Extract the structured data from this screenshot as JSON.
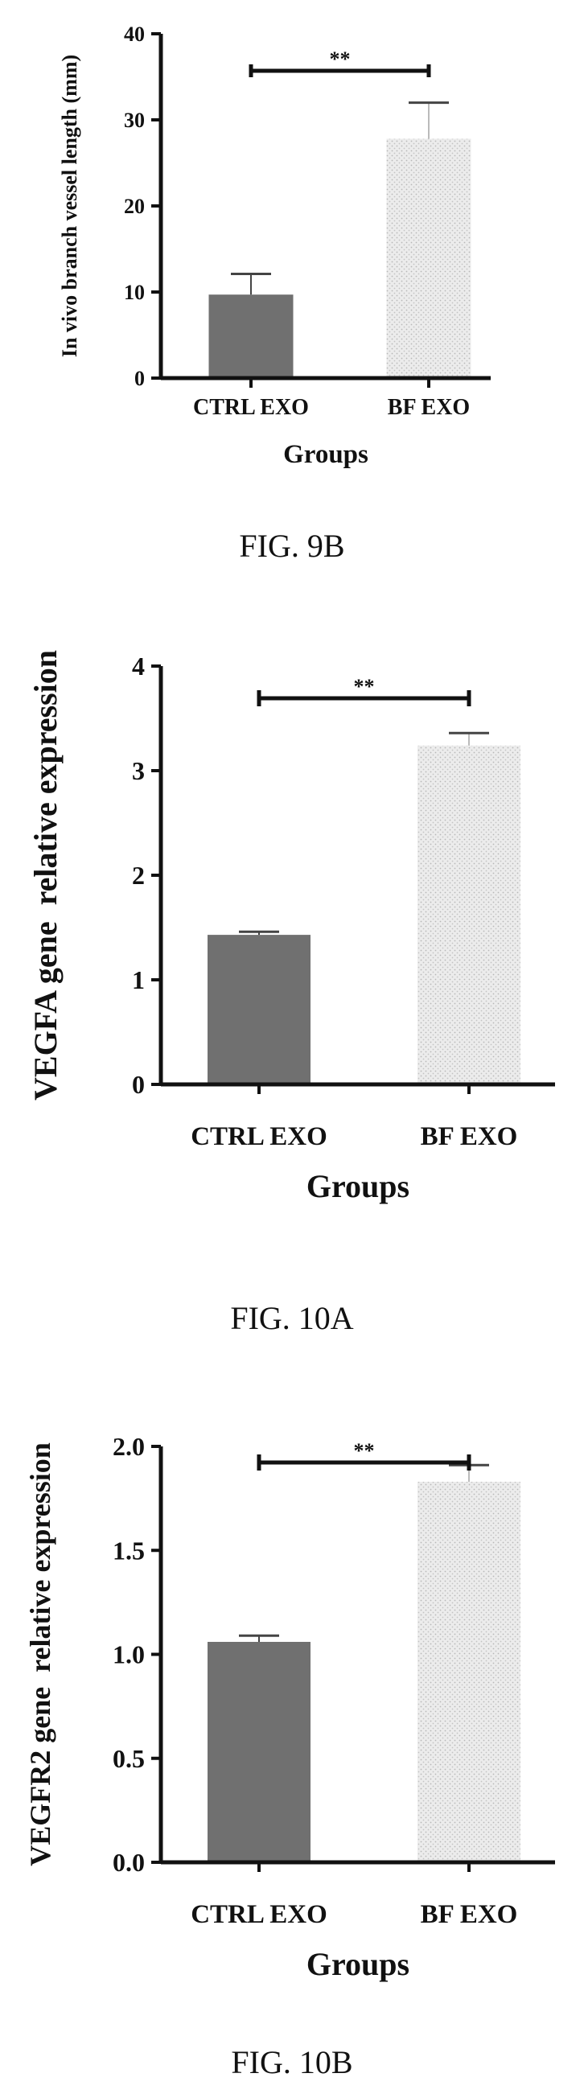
{
  "chart_data": [
    {
      "type": "bar",
      "categories": [
        "CTRL EXO",
        "BF EXO"
      ],
      "values": [
        9.7,
        27.8
      ],
      "errors": [
        2.4,
        4.2
      ],
      "ylabel": "In vivo branch vessel length (mm)",
      "xlabel": "Groups",
      "ylim": [
        0,
        40
      ],
      "yticks": [
        "0",
        "10",
        "20",
        "30",
        "40"
      ],
      "significance": "**",
      "bar_colors": [
        "#707070",
        "#dcdcdc"
      ],
      "caption": "FIG. 9B"
    },
    {
      "type": "bar",
      "categories": [
        "CTRL EXO",
        "BF EXO"
      ],
      "values": [
        1.43,
        3.24
      ],
      "errors": [
        0.03,
        0.12
      ],
      "ylabel": "VEGFA gene  relative expression",
      "xlabel": "Groups",
      "ylim": [
        0,
        4
      ],
      "yticks": [
        "0",
        "1",
        "2",
        "3",
        "4"
      ],
      "significance": "**",
      "bar_colors": [
        "#707070",
        "#dcdcdc"
      ],
      "caption": "FIG. 10A"
    },
    {
      "type": "bar",
      "categories": [
        "CTRL EXO",
        "BF EXO"
      ],
      "values": [
        1.06,
        1.83
      ],
      "errors": [
        0.03,
        0.08
      ],
      "ylabel": "VEGFR2 gene  relative expression",
      "xlabel": "Groups",
      "ylim": [
        0,
        2.0
      ],
      "yticks": [
        "0.0",
        "0.5",
        "1.0",
        "1.5",
        "2.0"
      ],
      "significance": "**",
      "bar_colors": [
        "#707070",
        "#dcdcdc"
      ],
      "caption": "FIG. 10B"
    }
  ]
}
